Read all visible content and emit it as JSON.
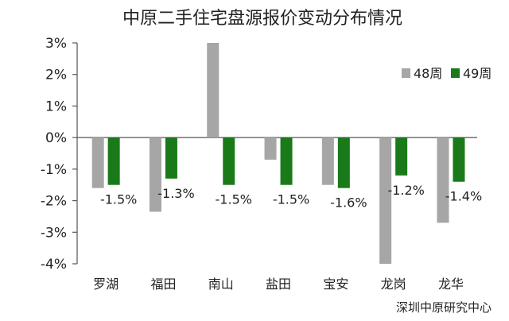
{
  "chart_data": {
    "type": "bar",
    "title": "中原二手住宅盘源报价变动分布情况",
    "source": "深圳中原研究中心",
    "categories": [
      "罗湖",
      "福田",
      "南山",
      "盐田",
      "宝安",
      "龙岗",
      "龙华"
    ],
    "series": [
      {
        "name": "48周",
        "color": "#a6a6a6",
        "values": [
          -1.6,
          -2.35,
          3.0,
          -0.7,
          -1.5,
          -4.0,
          -2.7
        ]
      },
      {
        "name": "49周",
        "color": "#1a7a1a",
        "values": [
          -1.5,
          -1.3,
          -1.5,
          -1.5,
          -1.6,
          -1.2,
          -1.4
        ]
      }
    ],
    "data_labels": [
      "-1.5%",
      "-1.3%",
      "-1.5%",
      "-1.5%",
      "-1.6%",
      "-1.2%",
      "-1.4%"
    ],
    "ylim": [
      -4,
      3
    ],
    "yticks": [
      3,
      2,
      1,
      0,
      -1,
      -2,
      -3,
      -4
    ],
    "ytick_labels": [
      "3%",
      "2%",
      "1%",
      "0%",
      "-1%",
      "-2%",
      "-3%",
      "-4%"
    ],
    "legend_position": "top-right",
    "grid": false
  }
}
